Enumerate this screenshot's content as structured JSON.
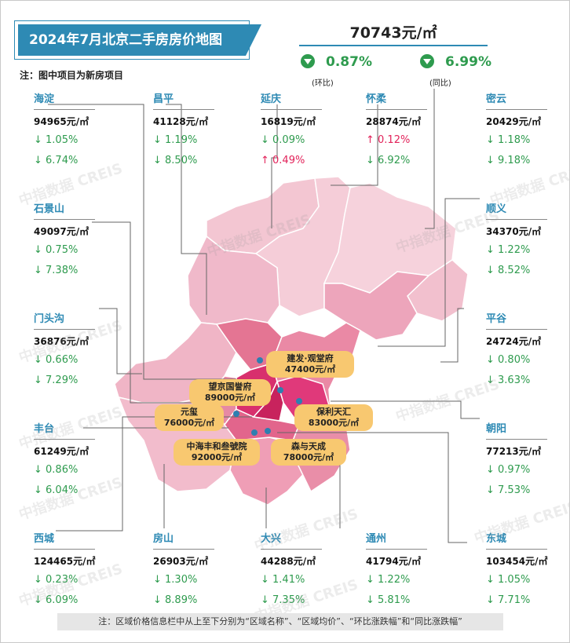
{
  "title": "2024年7月北京二手房房价地图",
  "note_top": "注：图中项目为新房项目",
  "summary": {
    "avg": "70743元/㎡",
    "mom": "0.87%",
    "mom_label": "(环比)",
    "yoy": "6.99%",
    "yoy_label": "(同比)"
  },
  "watermark": "中指数据 CREIS",
  "districts": [
    {
      "name": "海淀",
      "price": "94965元/㎡",
      "r1": "↓ 1.05%",
      "r2": "↓ 6.74%",
      "u1": false,
      "u2": false
    },
    {
      "name": "昌平",
      "price": "41128元/㎡",
      "r1": "↓ 1.19%",
      "r2": "↓ 8.50%",
      "u1": false,
      "u2": false
    },
    {
      "name": "延庆",
      "price": "16819元/㎡",
      "r1": "↓ 0.09%",
      "r2": "↑ 0.49%",
      "u1": false,
      "u2": true
    },
    {
      "name": "怀柔",
      "price": "28874元/㎡",
      "r1": "↑ 0.12%",
      "r2": "↓ 6.92%",
      "u1": true,
      "u2": false
    },
    {
      "name": "密云",
      "price": "20429元/㎡",
      "r1": "↓ 1.18%",
      "r2": "↓ 9.18%",
      "u1": false,
      "u2": false
    },
    {
      "name": "石景山",
      "price": "49097元/㎡",
      "r1": "↓ 0.75%",
      "r2": "↓ 7.38%",
      "u1": false,
      "u2": false
    },
    {
      "name": "顺义",
      "price": "34370元/㎡",
      "r1": "↓ 1.22%",
      "r2": "↓ 8.52%",
      "u1": false,
      "u2": false
    },
    {
      "name": "门头沟",
      "price": "36876元/㎡",
      "r1": "↓ 0.66%",
      "r2": "↓ 7.29%",
      "u1": false,
      "u2": false
    },
    {
      "name": "平谷",
      "price": "24724元/㎡",
      "r1": "↓ 0.80%",
      "r2": "↓ 3.63%",
      "u1": false,
      "u2": false
    },
    {
      "name": "丰台",
      "price": "61249元/㎡",
      "r1": "↓ 0.86%",
      "r2": "↓ 6.04%",
      "u1": false,
      "u2": false
    },
    {
      "name": "朝阳",
      "price": "77213元/㎡",
      "r1": "↓ 0.97%",
      "r2": "↓ 7.53%",
      "u1": false,
      "u2": false
    },
    {
      "name": "西城",
      "price": "124465元/㎡",
      "r1": "↓ 0.23%",
      "r2": "↓ 6.09%",
      "u1": false,
      "u2": false
    },
    {
      "name": "房山",
      "price": "26903元/㎡",
      "r1": "↓ 1.30%",
      "r2": "↓ 8.89%",
      "u1": false,
      "u2": false
    },
    {
      "name": "大兴",
      "price": "44288元/㎡",
      "r1": "↓ 1.41%",
      "r2": "↓ 7.35%",
      "u1": false,
      "u2": false
    },
    {
      "name": "通州",
      "price": "41794元/㎡",
      "r1": "↓ 1.22%",
      "r2": "↓ 5.81%",
      "u1": false,
      "u2": false
    },
    {
      "name": "东城",
      "price": "103454元/㎡",
      "r1": "↓ 1.05%",
      "r2": "↓ 7.71%",
      "u1": false,
      "u2": false
    }
  ],
  "projects": [
    {
      "name": "建发·观堂府",
      "price": "47400元/㎡"
    },
    {
      "name": "望京国誉府",
      "price": "89000元/㎡"
    },
    {
      "name": "元玺",
      "price": "76000元/㎡"
    },
    {
      "name": "保利天汇",
      "price": "83000元/㎡"
    },
    {
      "name": "中海丰和叁號院",
      "price": "92000元/㎡"
    },
    {
      "name": "森与天成",
      "price": "78000元/㎡"
    }
  ],
  "bottom_note": "注：区域价格信息栏中从上至下分别为“区域名称”、“区域均价”、“环比涨跌幅”和“同比涨跌幅”",
  "colors": {
    "accent": "#2e8ab4",
    "down": "#2e9b4e",
    "up": "#e2225a",
    "label": "#f8c870"
  }
}
